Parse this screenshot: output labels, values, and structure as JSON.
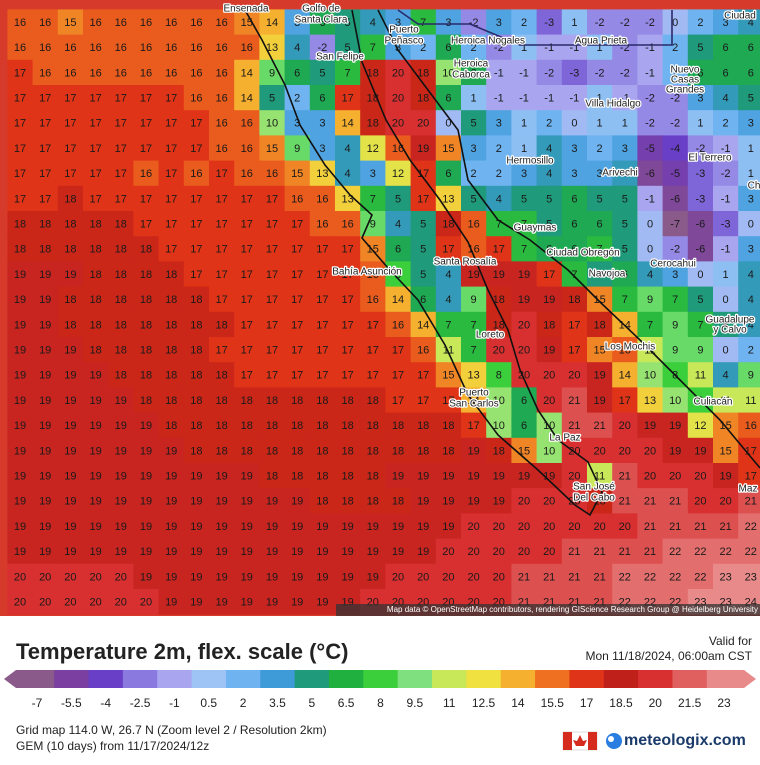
{
  "map": {
    "grid": [
      [
        16,
        16,
        15,
        16,
        16,
        16,
        16,
        16,
        16,
        15,
        14,
        3,
        6,
        5,
        4,
        3,
        7,
        3,
        -2,
        3,
        2,
        -3,
        1,
        -2,
        -2,
        -2,
        0,
        2,
        3,
        4
      ],
      [
        16,
        16,
        16,
        16,
        16,
        16,
        16,
        16,
        16,
        16,
        13,
        4,
        -2,
        5,
        7,
        3,
        2,
        6,
        2,
        -2,
        1,
        -1,
        -1,
        1,
        -2,
        -1,
        2,
        5,
        6,
        6
      ],
      [
        17,
        16,
        16,
        16,
        16,
        16,
        16,
        16,
        16,
        14,
        9,
        6,
        5,
        7,
        18,
        20,
        18,
        10,
        6,
        -1,
        -1,
        -2,
        -3,
        -2,
        -2,
        -1,
        2,
        6,
        6,
        6
      ],
      [
        17,
        17,
        17,
        17,
        17,
        17,
        17,
        16,
        16,
        14,
        5,
        2,
        6,
        17,
        18,
        20,
        18,
        6,
        1,
        -1,
        -1,
        -1,
        -1,
        1,
        -1,
        -2,
        -2,
        3,
        4,
        5
      ],
      [
        17,
        17,
        17,
        17,
        17,
        17,
        17,
        17,
        16,
        16,
        10,
        3,
        3,
        14,
        18,
        20,
        20,
        0,
        5,
        3,
        1,
        2,
        0,
        1,
        1,
        -2,
        -2,
        1,
        2,
        3
      ],
      [
        17,
        17,
        17,
        17,
        17,
        17,
        17,
        17,
        16,
        16,
        15,
        9,
        3,
        4,
        12,
        16,
        19,
        15,
        3,
        2,
        1,
        4,
        3,
        2,
        3,
        -5,
        -4,
        -2,
        -1,
        1
      ],
      [
        17,
        17,
        17,
        17,
        17,
        16,
        17,
        16,
        17,
        16,
        16,
        15,
        13,
        4,
        3,
        12,
        17,
        6,
        2,
        2,
        3,
        4,
        3,
        3,
        4,
        -6,
        -5,
        -3,
        -2,
        1
      ],
      [
        17,
        17,
        18,
        17,
        17,
        17,
        17,
        17,
        17,
        17,
        17,
        16,
        16,
        13,
        7,
        5,
        17,
        13,
        5,
        4,
        5,
        5,
        6,
        5,
        5,
        -1,
        -6,
        -3,
        -1,
        3
      ],
      [
        18,
        18,
        18,
        18,
        18,
        17,
        17,
        17,
        17,
        17,
        17,
        17,
        16,
        16,
        9,
        4,
        5,
        18,
        16,
        7,
        7,
        5,
        6,
        6,
        5,
        0,
        -7,
        -6,
        -3,
        0
      ],
      [
        18,
        18,
        18,
        18,
        18,
        18,
        17,
        17,
        17,
        17,
        17,
        17,
        17,
        17,
        15,
        6,
        5,
        17,
        16,
        17,
        7,
        6,
        6,
        7,
        5,
        0,
        -2,
        -6,
        -1,
        3
      ],
      [
        19,
        19,
        19,
        18,
        18,
        18,
        18,
        17,
        17,
        17,
        17,
        17,
        17,
        17,
        16,
        8,
        5,
        4,
        19,
        19,
        19,
        17,
        7,
        5,
        6,
        4,
        3,
        0,
        1,
        4
      ],
      [
        19,
        19,
        18,
        18,
        18,
        18,
        18,
        18,
        17,
        17,
        17,
        17,
        17,
        17,
        16,
        14,
        6,
        4,
        9,
        18,
        19,
        19,
        18,
        15,
        7,
        9,
        7,
        5,
        0,
        4
      ],
      [
        19,
        19,
        18,
        18,
        18,
        18,
        18,
        18,
        18,
        17,
        17,
        17,
        17,
        17,
        17,
        16,
        14,
        7,
        7,
        18,
        20,
        18,
        17,
        18,
        14,
        7,
        9,
        7,
        5,
        4
      ],
      [
        19,
        19,
        19,
        18,
        18,
        18,
        18,
        18,
        17,
        17,
        17,
        17,
        17,
        17,
        17,
        17,
        16,
        11,
        7,
        20,
        20,
        19,
        17,
        15,
        16,
        11,
        9,
        9,
        0,
        2
      ],
      [
        19,
        19,
        19,
        19,
        18,
        18,
        18,
        18,
        18,
        17,
        17,
        17,
        17,
        17,
        17,
        17,
        17,
        15,
        13,
        8,
        20,
        20,
        20,
        19,
        14,
        10,
        8,
        11,
        4,
        9
      ],
      [
        19,
        19,
        19,
        19,
        19,
        18,
        18,
        18,
        18,
        18,
        18,
        18,
        18,
        18,
        18,
        17,
        17,
        17,
        14,
        10,
        6,
        20,
        21,
        19,
        17,
        13,
        10,
        8,
        11,
        11
      ],
      [
        19,
        19,
        19,
        19,
        19,
        19,
        18,
        18,
        18,
        18,
        18,
        18,
        18,
        18,
        18,
        18,
        18,
        18,
        17,
        10,
        6,
        10,
        21,
        21,
        20,
        19,
        19,
        12,
        15,
        16
      ],
      [
        19,
        19,
        19,
        19,
        19,
        19,
        19,
        18,
        18,
        18,
        18,
        18,
        18,
        18,
        18,
        18,
        18,
        18,
        19,
        18,
        15,
        10,
        20,
        20,
        20,
        20,
        19,
        19,
        15,
        17
      ],
      [
        19,
        19,
        19,
        19,
        19,
        19,
        19,
        19,
        19,
        19,
        18,
        18,
        18,
        18,
        18,
        19,
        19,
        19,
        19,
        19,
        19,
        19,
        20,
        11,
        21,
        20,
        20,
        20,
        19,
        17
      ],
      [
        19,
        19,
        19,
        19,
        19,
        19,
        19,
        19,
        19,
        19,
        19,
        19,
        18,
        18,
        18,
        18,
        19,
        19,
        19,
        19,
        20,
        20,
        20,
        18,
        21,
        21,
        21,
        20,
        20,
        21
      ],
      [
        19,
        19,
        19,
        19,
        19,
        19,
        19,
        19,
        19,
        19,
        19,
        19,
        19,
        19,
        19,
        19,
        19,
        19,
        20,
        20,
        20,
        20,
        20,
        20,
        20,
        21,
        21,
        21,
        21,
        22
      ],
      [
        19,
        19,
        19,
        19,
        19,
        19,
        19,
        19,
        19,
        19,
        19,
        19,
        19,
        19,
        19,
        19,
        19,
        20,
        20,
        20,
        20,
        20,
        21,
        21,
        21,
        21,
        22,
        22,
        22,
        22
      ],
      [
        20,
        20,
        20,
        20,
        20,
        19,
        19,
        19,
        19,
        19,
        19,
        19,
        19,
        19,
        19,
        20,
        20,
        20,
        20,
        20,
        21,
        21,
        21,
        21,
        22,
        22,
        22,
        22,
        23,
        23
      ],
      [
        20,
        20,
        20,
        20,
        20,
        20,
        19,
        19,
        19,
        19,
        19,
        19,
        19,
        19,
        20,
        20,
        20,
        20,
        20,
        20,
        21,
        21,
        21,
        21,
        22,
        22,
        22,
        23,
        23,
        24
      ]
    ],
    "places": [
      "Ensenada",
      "Golfo de",
      "Santa Clara",
      "Puerto",
      "Peñasco",
      "San Felipe",
      "Heroica Nogales",
      "Agua Prieta",
      "Ciudad",
      "Heroica",
      "Caborca",
      "Nuevo",
      "Casas",
      "Grandes",
      "Villa Hidalgo",
      "Hermosillo",
      "Arivechi",
      "El Terrero",
      "Ch",
      "Guaymas",
      "Ciudad Obregón",
      "Navojoa",
      "Cerocahui",
      "Bahía Asunción",
      "Santa Rosalía",
      "Loreto",
      "Los Mochis",
      "Guadalupe",
      "y Calvo",
      "Culiacán",
      "Puerto",
      "San Carlos",
      "La Paz",
      "San José",
      "Del Cabo",
      "Maz"
    ],
    "attribution": "Map data © OpenStreetMap contributors, rendering GIScience Research Group @ Heidelberg University"
  },
  "legend": {
    "title": "Temperature 2m, flex. scale (°C)",
    "ticks": [
      -7,
      -5.5,
      -4,
      -2.5,
      -1,
      0.5,
      2,
      3.5,
      5,
      6.5,
      8,
      9.5,
      11,
      12.5,
      14,
      15.5,
      17,
      18.5,
      20,
      21.5,
      23
    ],
    "colors": [
      "#8a5a8a",
      "#7a3fa0",
      "#6a3fc8",
      "#8a7ae0",
      "#a9a6ef",
      "#9ec4f5",
      "#6fb4f0",
      "#3f9ad8",
      "#1f9a7a",
      "#1fb040",
      "#3ccf3c",
      "#7ee07e",
      "#c8e85a",
      "#f0e040",
      "#f5b030",
      "#ee7020",
      "#e03418",
      "#c0201a",
      "#d83030",
      "#e06060",
      "#e88a8a"
    ]
  },
  "footer": {
    "valid_label": "Valid for",
    "valid_time": "Mon 11/18/2024, 06:00am CST",
    "grid_info": "Grid map 114.0 W, 26.7 N (Zoom level 2 / Resolution 2km)",
    "model": "GEM (10 days) from  11/17/2024/12z",
    "brand": "meteologix.com"
  }
}
